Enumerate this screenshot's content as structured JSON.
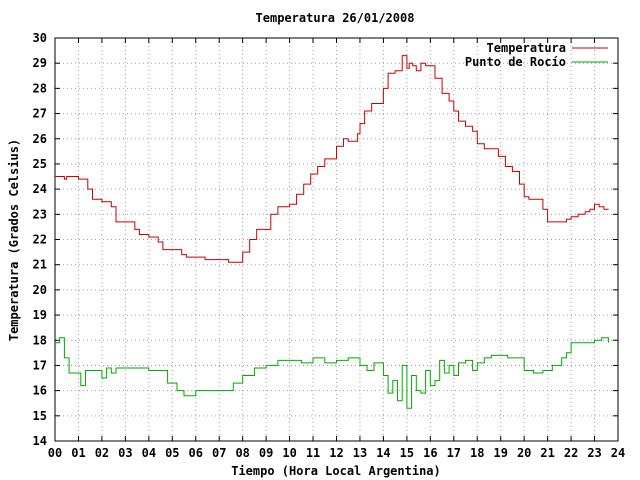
{
  "chart_data": {
    "type": "line",
    "title": "Temperatura 26/01/2008",
    "xlabel": "Tiempo (Hora Local Argentina)",
    "ylabel": "Temperatura (Grados Celsius)",
    "xlim": [
      0,
      24
    ],
    "ylim": [
      14,
      30
    ],
    "grid": true,
    "legend_position": "top-right",
    "x_tick_labels": [
      "00",
      "01",
      "02",
      "03",
      "04",
      "05",
      "06",
      "07",
      "08",
      "09",
      "10",
      "11",
      "12",
      "13",
      "14",
      "15",
      "16",
      "17",
      "18",
      "19",
      "20",
      "21",
      "22",
      "23",
      "24"
    ],
    "y_tick_labels": [
      "14",
      "15",
      "16",
      "17",
      "18",
      "19",
      "20",
      "21",
      "22",
      "23",
      "24",
      "25",
      "26",
      "27",
      "28",
      "29",
      "30"
    ],
    "series": [
      {
        "name": "Temperatura",
        "color": "#cc0000",
        "x": [
          0.0,
          0.4,
          0.5,
          1.0,
          1.4,
          1.6,
          2.0,
          2.4,
          2.6,
          3.0,
          3.4,
          3.6,
          4.0,
          4.4,
          4.6,
          5.0,
          5.4,
          5.6,
          6.0,
          6.4,
          7.0,
          7.4,
          7.9,
          8.0,
          8.3,
          8.6,
          9.0,
          9.2,
          9.5,
          9.7,
          10.0,
          10.3,
          10.6,
          10.9,
          11.2,
          11.5,
          11.8,
          12.0,
          12.3,
          12.5,
          12.9,
          13.0,
          13.2,
          13.5,
          13.8,
          14.0,
          14.2,
          14.5,
          14.8,
          15.0,
          15.1,
          15.25,
          15.4,
          15.6,
          15.8,
          16.0,
          16.2,
          16.5,
          16.8,
          17.0,
          17.2,
          17.5,
          17.8,
          18.0,
          18.3,
          18.6,
          18.9,
          19.2,
          19.5,
          19.8,
          20.0,
          20.2,
          20.5,
          20.8,
          21.0,
          21.3,
          21.6,
          21.8,
          22.0,
          22.3,
          22.6,
          22.8,
          23.0,
          23.2,
          23.4,
          23.6
        ],
        "y": [
          24.5,
          24.4,
          24.5,
          24.4,
          24.0,
          23.6,
          23.5,
          23.3,
          22.7,
          22.7,
          22.4,
          22.2,
          22.1,
          21.9,
          21.6,
          21.6,
          21.4,
          21.3,
          21.3,
          21.2,
          21.2,
          21.1,
          21.1,
          21.5,
          22.0,
          22.4,
          22.4,
          23.0,
          23.3,
          23.3,
          23.4,
          23.8,
          24.2,
          24.6,
          24.9,
          25.2,
          25.2,
          25.7,
          26.0,
          25.9,
          26.2,
          26.6,
          27.1,
          27.4,
          27.4,
          28.0,
          28.6,
          28.7,
          29.3,
          28.8,
          29.0,
          28.9,
          28.7,
          29.0,
          28.9,
          28.9,
          28.4,
          27.8,
          27.5,
          27.1,
          26.7,
          26.5,
          26.3,
          25.8,
          25.6,
          25.6,
          25.3,
          24.9,
          24.7,
          24.2,
          23.7,
          23.6,
          23.6,
          23.2,
          22.7,
          22.7,
          22.7,
          22.8,
          22.9,
          23.0,
          23.1,
          23.2,
          23.4,
          23.3,
          23.2,
          23.2
        ]
      },
      {
        "name": "Punto de Rocío",
        "color": "#00aa00",
        "x": [
          0.0,
          0.2,
          0.4,
          0.6,
          1.0,
          1.1,
          1.3,
          1.6,
          2.0,
          2.2,
          2.4,
          2.6,
          3.0,
          3.5,
          4.0,
          4.4,
          4.8,
          5.2,
          5.5,
          5.8,
          6.0,
          6.4,
          7.0,
          7.6,
          8.0,
          8.5,
          9.0,
          9.5,
          10.0,
          10.5,
          11.0,
          11.5,
          12.0,
          12.5,
          13.0,
          13.3,
          13.6,
          14.0,
          14.2,
          14.4,
          14.6,
          14.8,
          15.0,
          15.2,
          15.4,
          15.6,
          15.8,
          16.0,
          16.2,
          16.4,
          16.6,
          16.8,
          17.0,
          17.2,
          17.5,
          17.8,
          18.0,
          18.3,
          18.6,
          19.0,
          19.3,
          19.6,
          20.0,
          20.4,
          20.8,
          21.2,
          21.6,
          21.8,
          22.0,
          22.3,
          22.6,
          23.0,
          23.3,
          23.6
        ],
        "y": [
          17.9,
          18.1,
          17.3,
          16.7,
          16.7,
          16.2,
          16.8,
          16.8,
          16.5,
          16.9,
          16.7,
          16.9,
          16.9,
          16.9,
          16.8,
          16.8,
          16.3,
          16.0,
          15.8,
          15.8,
          16.0,
          16.0,
          16.0,
          16.3,
          16.6,
          16.9,
          17.0,
          17.2,
          17.2,
          17.1,
          17.3,
          17.1,
          17.2,
          17.3,
          17.0,
          16.8,
          17.1,
          16.6,
          15.9,
          16.4,
          15.6,
          17.0,
          15.3,
          16.6,
          16.0,
          15.9,
          16.8,
          16.2,
          16.4,
          17.2,
          16.7,
          17.0,
          16.6,
          17.1,
          17.2,
          16.8,
          17.1,
          17.3,
          17.4,
          17.4,
          17.3,
          17.3,
          16.8,
          16.7,
          16.8,
          17.0,
          17.3,
          17.5,
          17.9,
          17.9,
          17.9,
          18.0,
          18.1,
          17.9
        ]
      }
    ]
  }
}
